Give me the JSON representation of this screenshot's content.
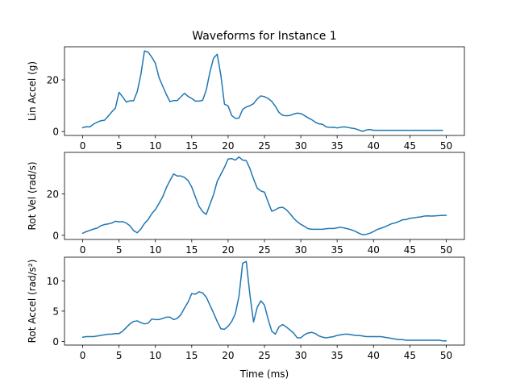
{
  "title": "Waveforms for Instance 1",
  "xlabel": "Time (ms)",
  "colors": {
    "line": "#1f77b4"
  },
  "chart_data": [
    {
      "type": "line",
      "ylabel": "Lin Accel (g)",
      "xlim": [
        -2.5,
        52.5
      ],
      "ylim": [
        -1.5,
        32.8
      ],
      "xticks": [
        0,
        5,
        10,
        15,
        20,
        25,
        30,
        35,
        40,
        45,
        50
      ],
      "yticks": [
        0,
        20
      ],
      "x": [
        0,
        0.5,
        1,
        1.5,
        2,
        2.5,
        3,
        3.5,
        4,
        4.5,
        5,
        5.5,
        6,
        6.5,
        7,
        7.5,
        8,
        8.5,
        9,
        9.5,
        10,
        10.5,
        11,
        11.5,
        12,
        12.5,
        13,
        13.5,
        14,
        14.5,
        15,
        15.5,
        16,
        16.5,
        17,
        17.5,
        18,
        18.5,
        19,
        19.5,
        20,
        20.5,
        21,
        21.5,
        22,
        22.5,
        23,
        23.5,
        24,
        24.5,
        25,
        25.5,
        26,
        26.5,
        27,
        27.5,
        28,
        28.5,
        29,
        29.5,
        30,
        30.5,
        31,
        31.5,
        32,
        32.5,
        33,
        33.5,
        34,
        34.5,
        35,
        35.5,
        36,
        36.5,
        37,
        37.5,
        38,
        38.5,
        39,
        39.5,
        40,
        40.5,
        41,
        41.5,
        42,
        42.5,
        43,
        43.5,
        44,
        44.5,
        45,
        45.5,
        46,
        46.5,
        47,
        47.5,
        48,
        48.5,
        49,
        49.5
      ],
      "values": [
        1.5,
        1.9,
        1.8,
        2.9,
        3.6,
        4.2,
        4.4,
        5.9,
        7.6,
        9.1,
        15.2,
        13.4,
        11.4,
        11.9,
        11.9,
        15.4,
        22.0,
        31.2,
        30.7,
        28.8,
        26.4,
        20.9,
        17.6,
        14.4,
        11.6,
        12.0,
        12.0,
        13.4,
        14.8,
        13.6,
        12.8,
        11.8,
        11.8,
        12.1,
        16.1,
        23.0,
        28.4,
        29.9,
        21.9,
        10.6,
        9.9,
        6.2,
        5.1,
        5.2,
        8.6,
        9.5,
        10.0,
        10.8,
        12.6,
        13.8,
        13.5,
        12.8,
        11.7,
        9.8,
        7.4,
        6.3,
        6.1,
        6.2,
        6.8,
        7.1,
        7.0,
        6.2,
        5.3,
        4.6,
        3.6,
        3.0,
        2.8,
        1.8,
        1.6,
        1.7,
        1.4,
        1.7,
        1.8,
        1.6,
        1.3,
        1.1,
        0.6,
        0.1,
        0.6,
        0.8,
        0.5,
        0.5,
        0.5,
        0.5,
        0.5,
        0.5,
        0.5,
        0.5,
        0.5,
        0.5,
        0.5,
        0.5,
        0.5,
        0.5,
        0.5,
        0.5,
        0.5,
        0.5,
        0.5,
        0.5
      ]
    },
    {
      "type": "line",
      "ylabel": "Rot Vel (rad/s)",
      "xlim": [
        -2.5,
        52.5
      ],
      "ylim": [
        -2.0,
        40.0
      ],
      "xticks": [
        0,
        5,
        10,
        15,
        20,
        25,
        30,
        35,
        40,
        45,
        50
      ],
      "yticks": [
        0,
        20
      ],
      "x": [
        0,
        0.5,
        1,
        1.5,
        2,
        2.5,
        3,
        3.5,
        4,
        4.5,
        5,
        5.5,
        6,
        6.5,
        7,
        7.5,
        8,
        8.5,
        9,
        9.5,
        10,
        10.5,
        11,
        11.5,
        12,
        12.5,
        13,
        13.5,
        14,
        14.5,
        15,
        15.5,
        16,
        16.5,
        17,
        17.5,
        18,
        18.5,
        19,
        19.5,
        20,
        20.5,
        21,
        21.5,
        22,
        22.5,
        23,
        23.5,
        24,
        24.5,
        25,
        25.5,
        26,
        26.5,
        27,
        27.5,
        28,
        28.5,
        29,
        29.5,
        30,
        30.5,
        31,
        31.5,
        32,
        32.5,
        33,
        33.5,
        34,
        34.5,
        35,
        35.5,
        36,
        36.5,
        37,
        37.5,
        38,
        38.5,
        39,
        39.5,
        40,
        40.5,
        41,
        41.5,
        42,
        42.5,
        43,
        43.5,
        44,
        44.5,
        45,
        45.5,
        46,
        46.5,
        47,
        47.5,
        48,
        48.5,
        49,
        49.5,
        50
      ],
      "values": [
        1.0,
        1.8,
        2.4,
        3.0,
        3.5,
        4.6,
        5.2,
        5.5,
        5.9,
        6.8,
        6.5,
        6.6,
        5.9,
        4.6,
        2.3,
        1.2,
        3.0,
        5.7,
        7.6,
        10.4,
        12.4,
        15.4,
        18.5,
        22.9,
        26.4,
        29.6,
        28.6,
        28.6,
        27.9,
        26.4,
        23.3,
        18.5,
        14.0,
        11.4,
        10.1,
        14.9,
        19.6,
        26.0,
        29.4,
        32.8,
        36.8,
        37.0,
        36.3,
        37.8,
        36.3,
        36.0,
        32.2,
        27.2,
        22.8,
        21.4,
        20.8,
        16.1,
        11.6,
        12.3,
        13.3,
        13.5,
        12.4,
        10.5,
        8.3,
        6.6,
        5.3,
        4.3,
        3.2,
        2.9,
        2.9,
        2.9,
        2.9,
        3.2,
        3.3,
        3.3,
        3.6,
        3.9,
        3.5,
        3.1,
        2.6,
        1.9,
        1.0,
        0.3,
        0.5,
        1.0,
        1.8,
        2.8,
        3.4,
        4.0,
        4.8,
        5.6,
        6.0,
        6.7,
        7.5,
        7.6,
        8.2,
        8.4,
        8.7,
        8.9,
        9.3,
        9.4,
        9.3,
        9.4,
        9.5,
        9.6,
        9.6
      ]
    },
    {
      "type": "line",
      "ylabel": "Rot Accel (rad/s²)",
      "xlim": [
        -2.5,
        52.5
      ],
      "ylim": [
        -0.6,
        13.9
      ],
      "xticks": [
        0,
        5,
        10,
        15,
        20,
        25,
        30,
        35,
        40,
        45,
        50
      ],
      "yticks": [
        0,
        5,
        10
      ],
      "x": [
        0,
        0.5,
        1,
        1.5,
        2,
        2.5,
        3,
        3.5,
        4,
        4.5,
        5,
        5.5,
        6,
        6.5,
        7,
        7.5,
        8,
        8.5,
        9,
        9.5,
        10,
        10.5,
        11,
        11.5,
        12,
        12.5,
        13,
        13.5,
        14,
        14.5,
        15,
        15.5,
        16,
        16.5,
        17,
        17.5,
        18,
        18.5,
        19,
        19.5,
        20,
        20.5,
        21,
        21.5,
        22,
        22.5,
        23,
        23.5,
        24,
        24.5,
        25,
        25.5,
        26,
        26.5,
        27,
        27.5,
        28,
        28.5,
        29,
        29.5,
        30,
        30.5,
        31,
        31.5,
        32,
        32.5,
        33,
        33.5,
        34,
        34.5,
        35,
        35.5,
        36,
        36.5,
        37,
        37.5,
        38,
        38.5,
        39,
        39.5,
        40,
        40.5,
        41,
        41.5,
        42,
        42.5,
        43,
        43.5,
        44,
        44.5,
        45,
        45.5,
        46,
        46.5,
        47,
        47.5,
        48,
        48.5,
        49,
        49.5,
        50
      ],
      "values": [
        0.7,
        0.8,
        0.8,
        0.8,
        0.9,
        1.0,
        1.1,
        1.2,
        1.2,
        1.3,
        1.3,
        1.7,
        2.3,
        2.9,
        3.3,
        3.4,
        3.1,
        2.9,
        3.0,
        3.7,
        3.6,
        3.6,
        3.8,
        4.0,
        4.0,
        3.6,
        3.8,
        4.4,
        5.5,
        6.5,
        7.9,
        7.8,
        8.2,
        8.0,
        7.3,
        6.0,
        4.7,
        3.3,
        2.1,
        2.0,
        2.5,
        3.3,
        4.6,
        7.5,
        12.9,
        13.2,
        7.7,
        3.2,
        5.6,
        6.7,
        6.0,
        3.7,
        1.7,
        1.2,
        2.4,
        2.8,
        2.4,
        1.9,
        1.4,
        0.6,
        0.6,
        1.1,
        1.4,
        1.5,
        1.3,
        0.9,
        0.7,
        0.6,
        0.7,
        0.8,
        1.0,
        1.1,
        1.2,
        1.2,
        1.1,
        1.0,
        1.0,
        0.9,
        0.8,
        0.8,
        0.8,
        0.8,
        0.8,
        0.7,
        0.6,
        0.5,
        0.4,
        0.3,
        0.3,
        0.2,
        0.2,
        0.2,
        0.2,
        0.2,
        0.2,
        0.2,
        0.2,
        0.2,
        0.2,
        0.1,
        0.1
      ]
    }
  ]
}
